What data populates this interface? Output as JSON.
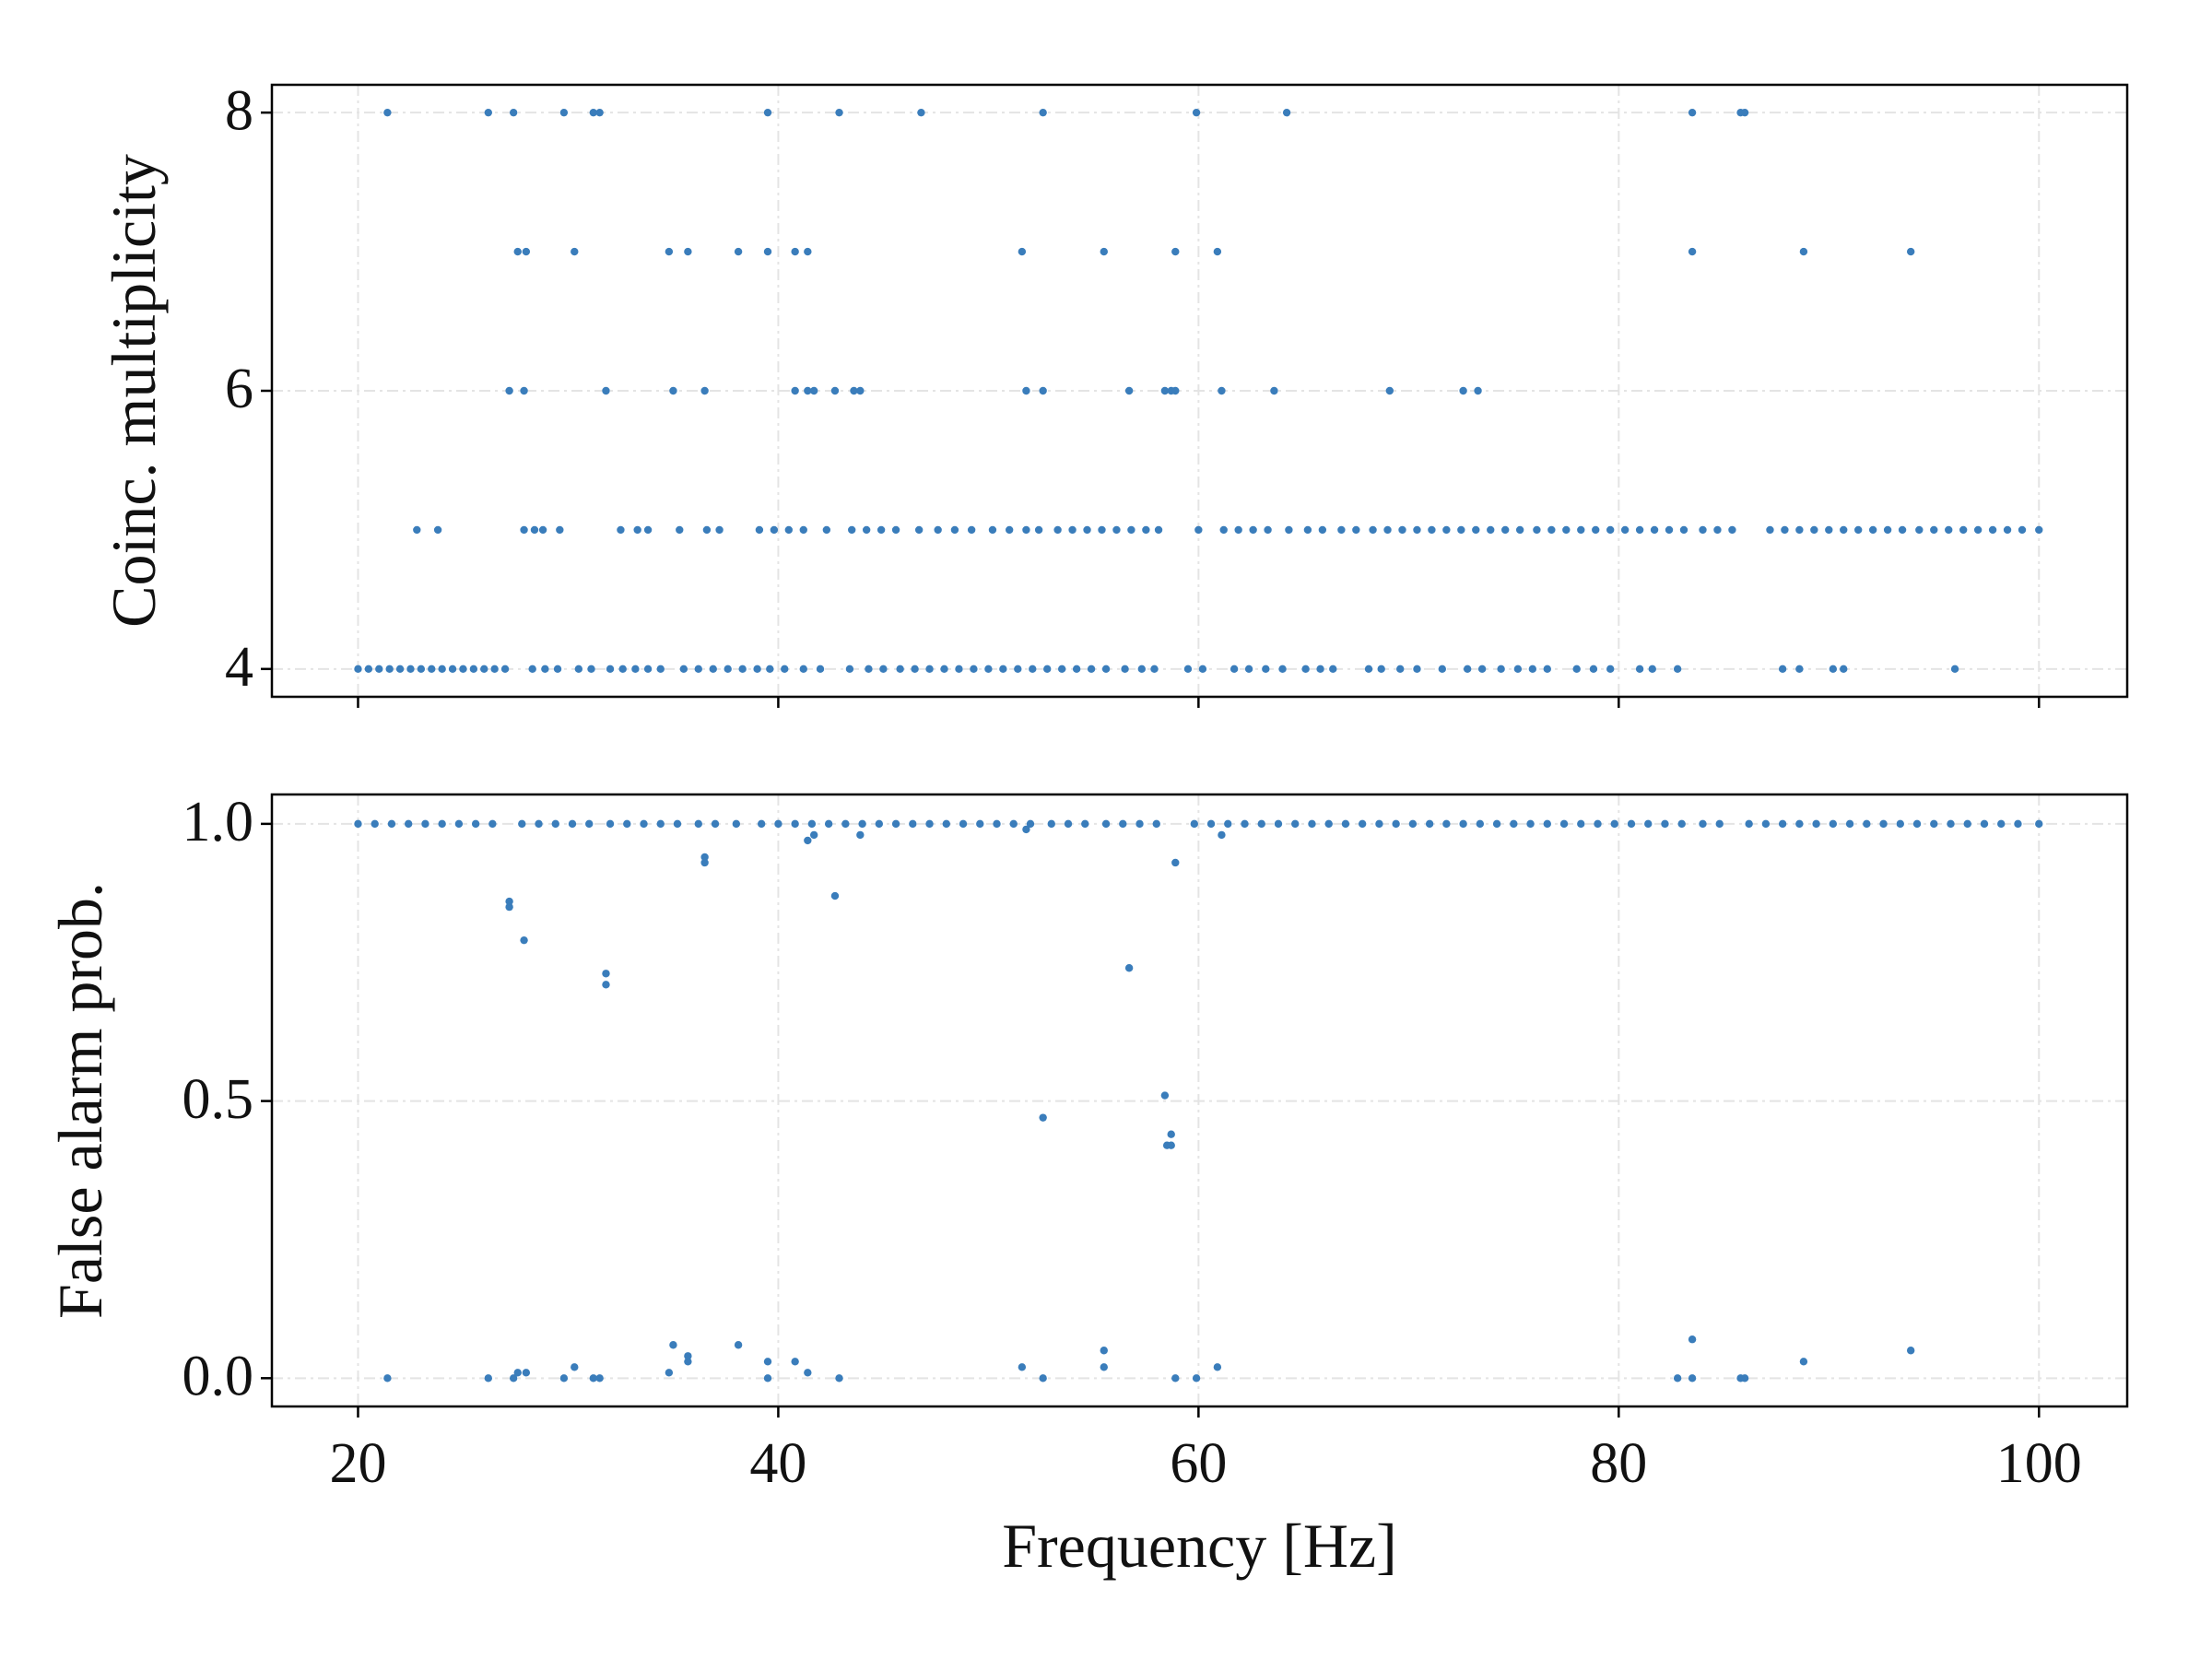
{
  "chart_data": [
    {
      "type": "scatter",
      "ylabel": "Coinc. multiplicity",
      "color": "#3a7dbb",
      "grid": true,
      "xlim": [
        15.9,
        104.2
      ],
      "xticks": [
        20,
        40,
        60,
        80,
        100
      ],
      "ylim": [
        3.8,
        8.2
      ],
      "yticks": [
        4,
        6,
        8
      ],
      "x": [
        21.4,
        26.2,
        27.4,
        29.8,
        31.2,
        31.5,
        39.5,
        42.9,
        46.8,
        52.6,
        59.9,
        64.2,
        83.5,
        85.8,
        86.0,
        27.6,
        28.0,
        30.3,
        34.8,
        35.7,
        38.1,
        39.5,
        40.8,
        41.4,
        51.6,
        55.5,
        58.9,
        60.9,
        83.5,
        88.8,
        93.9,
        27.2,
        27.9,
        31.8,
        35.0,
        36.5,
        40.8,
        41.4,
        41.7,
        42.7,
        43.6,
        43.9,
        51.8,
        52.6,
        56.7,
        58.4,
        58.7,
        58.9,
        61.1,
        63.6,
        69.1,
        72.6,
        73.3,
        22.8,
        23.8,
        27.9,
        28.4,
        28.8,
        29.6,
        32.5,
        33.3,
        33.8,
        35.3,
        36.6,
        37.2,
        39.1,
        39.8,
        40.5,
        41.2,
        42.3,
        43.5,
        44.2,
        44.9,
        45.6,
        46.7,
        47.6,
        48.4,
        49.2,
        50.2,
        51.0,
        51.8,
        52.4,
        53.3,
        54.0,
        54.7,
        55.4,
        56.1,
        56.8,
        57.5,
        58.1,
        60.0,
        61.2,
        61.9,
        62.6,
        63.3,
        64.3,
        65.2,
        65.9,
        66.8,
        67.5,
        68.3,
        69.0,
        69.7,
        70.4,
        71.1,
        71.8,
        72.5,
        73.2,
        73.9,
        74.6,
        75.3,
        76.1,
        76.8,
        77.5,
        78.2,
        78.9,
        79.6,
        80.3,
        81.0,
        81.7,
        82.4,
        83.1,
        84.0,
        84.7,
        85.4,
        87.2,
        87.9,
        88.6,
        89.3,
        90.0,
        90.7,
        91.4,
        92.1,
        92.8,
        93.5,
        94.3,
        95.0,
        95.7,
        96.4,
        97.1,
        97.8,
        98.5,
        99.2,
        100.0,
        20.0,
        20.5,
        21.0,
        21.5,
        22.0,
        22.5,
        23.0,
        23.5,
        24.0,
        24.5,
        25.0,
        25.5,
        26.0,
        26.5,
        27.0,
        28.3,
        28.9,
        29.5,
        30.5,
        31.1,
        32.0,
        32.6,
        33.2,
        33.8,
        34.4,
        35.5,
        36.2,
        36.9,
        37.6,
        38.3,
        39.0,
        39.6,
        40.3,
        41.2,
        42.0,
        43.4,
        44.3,
        45.0,
        45.8,
        46.5,
        47.2,
        47.9,
        48.6,
        49.3,
        50.0,
        50.7,
        51.4,
        52.1,
        52.8,
        53.5,
        54.2,
        54.9,
        55.6,
        56.5,
        57.3,
        57.9,
        59.5,
        60.2,
        61.7,
        62.4,
        63.2,
        64.0,
        65.1,
        65.8,
        66.4,
        68.1,
        68.7,
        69.6,
        70.4,
        71.6,
        72.8,
        73.5,
        74.4,
        75.2,
        75.9,
        76.6,
        78.0,
        78.8,
        79.6,
        81.0,
        81.6,
        82.8,
        87.8,
        88.6,
        90.2,
        90.7,
        96.0
      ],
      "values": [
        8,
        8,
        8,
        8,
        8,
        8,
        8,
        8,
        8,
        8,
        8,
        8,
        8,
        8,
        8,
        7,
        7,
        7,
        7,
        7,
        7,
        7,
        7,
        7,
        7,
        7,
        7,
        7,
        7,
        7,
        7,
        6,
        6,
        6,
        6,
        6,
        6,
        6,
        6,
        6,
        6,
        6,
        6,
        6,
        6,
        6,
        6,
        6,
        6,
        6,
        6,
        6,
        6,
        5,
        5,
        5,
        5,
        5,
        5,
        5,
        5,
        5,
        5,
        5,
        5,
        5,
        5,
        5,
        5,
        5,
        5,
        5,
        5,
        5,
        5,
        5,
        5,
        5,
        5,
        5,
        5,
        5,
        5,
        5,
        5,
        5,
        5,
        5,
        5,
        5,
        5,
        5,
        5,
        5,
        5,
        5,
        5,
        5,
        5,
        5,
        5,
        5,
        5,
        5,
        5,
        5,
        5,
        5,
        5,
        5,
        5,
        5,
        5,
        5,
        5,
        5,
        5,
        5,
        5,
        5,
        5,
        5,
        5,
        5,
        5,
        5,
        5,
        5,
        5,
        5,
        5,
        5,
        5,
        5,
        5,
        5,
        5,
        5,
        5,
        5,
        5,
        5,
        5,
        5,
        4,
        4,
        4,
        4,
        4,
        4,
        4,
        4,
        4,
        4,
        4,
        4,
        4,
        4,
        4,
        4,
        4,
        4,
        4,
        4,
        4,
        4,
        4,
        4,
        4,
        4,
        4,
        4,
        4,
        4,
        4,
        4,
        4,
        4,
        4,
        4,
        4,
        4,
        4,
        4,
        4,
        4,
        4,
        4,
        4,
        4,
        4,
        4,
        4,
        4,
        4,
        4,
        4,
        4,
        4,
        4,
        4,
        4,
        4,
        4,
        4,
        4,
        4,
        4,
        4,
        4,
        4,
        4,
        4,
        4,
        4,
        4,
        4,
        4,
        4,
        4,
        4,
        4,
        4,
        4,
        4,
        4,
        4,
        4,
        4,
        4,
        4
      ]
    },
    {
      "type": "scatter",
      "ylabel": "False alarm prob.",
      "xlabel": "Frequency [Hz]",
      "color": "#3a7dbb",
      "grid": true,
      "xlim": [
        15.9,
        104.2
      ],
      "xticks": [
        20,
        40,
        60,
        80,
        100
      ],
      "ylim": [
        -0.051,
        1.053
      ],
      "yticks": [
        {
          "value": 0,
          "label": "0.0"
        },
        0.5,
        {
          "value": 1,
          "label": "1.0"
        }
      ],
      "x": [
        20.0,
        20.8,
        21.6,
        22.4,
        23.2,
        24.0,
        24.8,
        25.6,
        26.4,
        27.8,
        28.6,
        29.4,
        30.2,
        31.0,
        32.0,
        32.8,
        33.6,
        34.4,
        35.2,
        36.2,
        37.0,
        38.0,
        39.2,
        40.0,
        40.8,
        41.6,
        42.4,
        43.2,
        44.0,
        44.8,
        45.6,
        46.4,
        47.2,
        48.0,
        48.8,
        49.6,
        50.4,
        51.2,
        52.0,
        53.0,
        53.8,
        54.6,
        55.6,
        56.4,
        57.2,
        58.0,
        59.8,
        60.6,
        61.4,
        62.2,
        63.0,
        63.8,
        64.6,
        65.4,
        66.2,
        67.0,
        67.8,
        68.6,
        69.4,
        70.2,
        71.0,
        71.8,
        72.6,
        73.4,
        74.2,
        75.0,
        75.8,
        76.6,
        77.4,
        78.2,
        79.0,
        79.8,
        80.6,
        81.4,
        82.2,
        83.0,
        84.0,
        84.8,
        86.2,
        87.0,
        87.8,
        88.6,
        89.4,
        90.2,
        91.0,
        91.8,
        92.6,
        93.4,
        94.2,
        95.0,
        95.8,
        96.6,
        97.4,
        98.2,
        99.0,
        100.0,
        27.2,
        27.2,
        27.9,
        31.8,
        31.8,
        36.5,
        36.5,
        41.4,
        41.7,
        42.7,
        43.9,
        51.8,
        52.6,
        56.7,
        58.4,
        58.7,
        58.5,
        58.7,
        58.9,
        61.1,
        21.4,
        26.2,
        27.4,
        27.6,
        28.0,
        29.8,
        30.3,
        31.2,
        31.5,
        34.8,
        35.0,
        35.7,
        35.7,
        38.1,
        39.5,
        39.5,
        40.8,
        41.4,
        42.9,
        51.6,
        52.6,
        55.5,
        55.5,
        58.9,
        59.9,
        60.9,
        82.8,
        83.5,
        83.5,
        85.8,
        86.0,
        88.8,
        93.9
      ],
      "values": [
        1,
        1,
        1,
        1,
        1,
        1,
        1,
        1,
        1,
        1,
        1,
        1,
        1,
        1,
        1,
        1,
        1,
        1,
        1,
        1,
        1,
        1,
        1,
        1,
        1,
        1,
        1,
        1,
        1,
        1,
        1,
        1,
        1,
        1,
        1,
        1,
        1,
        1,
        1,
        1,
        1,
        1,
        1,
        1,
        1,
        1,
        1,
        1,
        1,
        1,
        1,
        1,
        1,
        1,
        1,
        1,
        1,
        1,
        1,
        1,
        1,
        1,
        1,
        1,
        1,
        1,
        1,
        1,
        1,
        1,
        1,
        1,
        1,
        1,
        1,
        1,
        1,
        1,
        1,
        1,
        1,
        1,
        1,
        1,
        1,
        1,
        1,
        1,
        1,
        1,
        1,
        1,
        1,
        1,
        1,
        1,
        0.85,
        0.86,
        0.79,
        0.73,
        0.71,
        0.93,
        0.94,
        0.97,
        0.98,
        0.87,
        0.98,
        0.99,
        0.47,
        0.74,
        0.51,
        0.44,
        0.42,
        0.42,
        0.93,
        0.98,
        0,
        0,
        0,
        0.01,
        0.01,
        0,
        0.02,
        0,
        0,
        0.01,
        0.06,
        0.03,
        0.04,
        0.06,
        0.03,
        0,
        0.03,
        0.01,
        0,
        0.02,
        0,
        0.02,
        0.05,
        0,
        0,
        0.02,
        0,
        0.07,
        0,
        0,
        0,
        0.03,
        0.05
      ]
    }
  ]
}
